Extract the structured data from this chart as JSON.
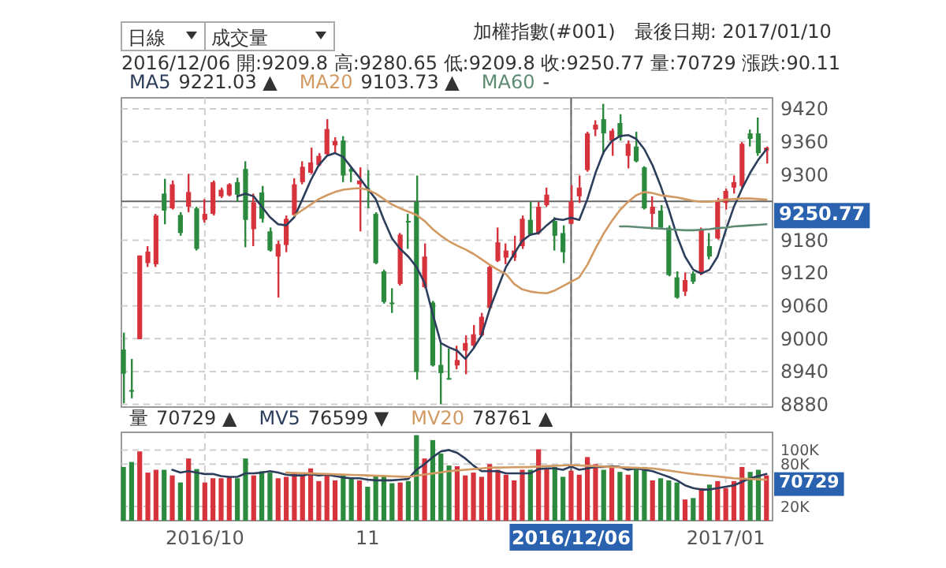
{
  "chart_data": [
    {
      "type": "candlestick",
      "title": "加權指數(#001)",
      "subtitle": "最後日期: 2017/01/10",
      "annotations": [
        "日線",
        "成交量",
        "2016/12/06 開:9209.8 高:9280.65 低:9209.8 收:9250.77 量:70729 漲跌:90.11",
        "9221.03 ▲",
        "9103.73 ▲",
        "-"
      ],
      "categories": [
        null,
        null,
        null,
        null,
        null,
        null,
        null,
        null,
        null,
        null,
        "2016/10",
        null,
        null,
        null,
        null,
        null,
        null,
        null,
        null,
        null,
        null,
        null,
        null,
        null,
        null,
        null,
        null,
        null,
        null,
        null,
        "11",
        null,
        null,
        null,
        null,
        null,
        null,
        null,
        null,
        null,
        null,
        null,
        null,
        null,
        null,
        null,
        null,
        null,
        null,
        null,
        null,
        null,
        null,
        null,
        null,
        "2016/12/06",
        null,
        null,
        null,
        null,
        null,
        null,
        null,
        null,
        null,
        null,
        null,
        null,
        null,
        null,
        null,
        null,
        null,
        null,
        "2017/01",
        null,
        null,
        null,
        null,
        null
      ],
      "ohlc": [
        [
          8980,
          9011,
          8882,
          8936
        ],
        [
          8906,
          8963,
          8891,
          8903
        ],
        [
          8999,
          9152,
          8999,
          9152
        ],
        [
          9138,
          9169,
          9131,
          9159
        ],
        [
          9136,
          9228,
          9131,
          9225
        ],
        [
          9265,
          9292,
          9209,
          9234
        ],
        [
          9238,
          9289,
          9236,
          9282
        ],
        [
          9226,
          9231,
          9188,
          9193
        ],
        [
          9241,
          9301,
          9231,
          9268
        ],
        [
          9238,
          9241,
          9161,
          9164
        ],
        [
          9217,
          9255,
          9212,
          9228
        ],
        [
          9228,
          9289,
          9225,
          9286
        ],
        [
          9260,
          9276,
          9257,
          9272
        ],
        [
          9262,
          9284,
          9260,
          9282
        ],
        [
          9286,
          9294,
          9250,
          9263
        ],
        [
          9310,
          9324,
          9167,
          9217
        ],
        [
          9200,
          9265,
          9169,
          9249
        ],
        [
          9267,
          9279,
          9212,
          9219
        ],
        [
          9196,
          9203,
          9159,
          9161
        ],
        [
          9150,
          9179,
          9075,
          9173
        ],
        [
          9171,
          9225,
          9158,
          9219
        ],
        [
          9226,
          9293,
          9225,
          9282
        ],
        [
          9286,
          9324,
          9282,
          9314
        ],
        [
          9303,
          9349,
          9301,
          9322
        ],
        [
          9317,
          9339,
          9315,
          9334
        ],
        [
          9337,
          9401,
          9334,
          9383
        ],
        [
          9353,
          9368,
          9339,
          9361
        ],
        [
          9362,
          9370,
          9286,
          9298
        ],
        [
          9310,
          9313,
          9286,
          9305
        ],
        [
          9282,
          9313,
          9196,
          9289
        ],
        [
          9275,
          9308,
          9238,
          9273
        ],
        [
          9228,
          9231,
          9136,
          9138
        ],
        [
          9123,
          9126,
          9064,
          9067
        ],
        [
          9066,
          9092,
          9047,
          9064
        ],
        [
          9100,
          9193,
          9097,
          9190
        ],
        [
          9215,
          9228,
          9164,
          9213
        ],
        [
          9250,
          9298,
          8925,
          8939
        ],
        [
          9094,
          9174,
          9092,
          9150
        ],
        [
          9066,
          9069,
          8949,
          8951
        ],
        [
          8952,
          8992,
          8880,
          8937
        ],
        [
          8928,
          8982,
          8925,
          8926
        ],
        [
          8951,
          8987,
          8944,
          8961
        ],
        [
          8978,
          9006,
          8935,
          8992
        ],
        [
          8987,
          9025,
          8982,
          9008
        ],
        [
          9006,
          9047,
          9004,
          9040
        ],
        [
          9056,
          9133,
          9052,
          9131
        ],
        [
          9142,
          9203,
          9140,
          9176
        ],
        [
          9148,
          9174,
          9136,
          9161
        ],
        [
          9148,
          9188,
          9142,
          9161
        ],
        [
          9169,
          9225,
          9164,
          9219
        ],
        [
          9217,
          9250,
          9188,
          9190
        ],
        [
          9193,
          9250,
          9190,
          9241
        ],
        [
          9244,
          9276,
          9241,
          9263
        ],
        [
          9215,
          9222,
          9161,
          9188
        ],
        [
          9193,
          9207,
          9138,
          9158
        ],
        [
          9209.8,
          9280.65,
          9209.8,
          9250.77
        ],
        [
          9260,
          9298,
          9248,
          9276
        ],
        [
          9308,
          9378,
          9305,
          9375
        ],
        [
          9382,
          9399,
          9370,
          9391
        ],
        [
          9401,
          9429,
          9337,
          9375
        ],
        [
          9362,
          9384,
          9334,
          9380
        ],
        [
          9394,
          9410,
          9362,
          9368
        ],
        [
          9334,
          9362,
          9311,
          9356
        ],
        [
          9351,
          9378,
          9322,
          9324
        ],
        [
          9313,
          9315,
          9236,
          9238
        ],
        [
          9228,
          9260,
          9200,
          9241
        ],
        [
          9234,
          9244,
          9200,
          9203
        ],
        [
          9203,
          9207,
          9114,
          9116
        ],
        [
          9112,
          9123,
          9073,
          9075
        ],
        [
          9086,
          9121,
          9078,
          9107
        ],
        [
          9119,
          9123,
          9100,
          9104
        ],
        [
          9119,
          9203,
          9116,
          9200
        ],
        [
          9169,
          9193,
          9145,
          9150
        ],
        [
          9183,
          9257,
          9181,
          9250
        ],
        [
          9248,
          9274,
          9236,
          9270
        ],
        [
          9276,
          9298,
          9265,
          9286
        ],
        [
          9279,
          9359,
          9276,
          9356
        ],
        [
          9375,
          9382,
          9351,
          9365
        ],
        [
          9375,
          9404,
          9334,
          9339
        ],
        [
          9344,
          9351,
          9320,
          9349
        ]
      ],
      "colors": [
        "#2b8a3e",
        "#2b8a3e",
        "#d7333c",
        "#d7333c",
        "#d7333c",
        "#2b8a3e",
        "#d7333c",
        "#2b8a3e",
        "#d7333c",
        "#2b8a3e",
        "#d7333c",
        "#d7333c",
        "#d7333c",
        "#d7333c",
        "#2b8a3e",
        "#2b8a3e",
        "#d7333c",
        "#2b8a3e",
        "#2b8a3e",
        "#d7333c",
        "#d7333c",
        "#d7333c",
        "#d7333c",
        "#d7333c",
        "#d7333c",
        "#d7333c",
        "#d7333c",
        "#2b8a3e",
        "#2b8a3e",
        "#d7333c",
        "#2b8a3e",
        "#2b8a3e",
        "#2b8a3e",
        "#2b8a3e",
        "#d7333c",
        "#2b8a3e",
        "#2b8a3e",
        "#d7333c",
        "#2b8a3e",
        "#2b8a3e",
        "#2b8a3e",
        "#d7333c",
        "#d7333c",
        "#d7333c",
        "#d7333c",
        "#d7333c",
        "#d7333c",
        "#d7333c",
        "#d7333c",
        "#d7333c",
        "#2b8a3e",
        "#d7333c",
        "#d7333c",
        "#2b8a3e",
        "#2b8a3e",
        "#d7333c",
        "#d7333c",
        "#d7333c",
        "#d7333c",
        "#2b8a3e",
        "#d7333c",
        "#2b8a3e",
        "#d7333c",
        "#2b8a3e",
        "#2b8a3e",
        "#d7333c",
        "#2b8a3e",
        "#2b8a3e",
        "#2b8a3e",
        "#d7333c",
        "#2b8a3e",
        "#d7333c",
        "#2b8a3e",
        "#d7333c",
        "#d7333c",
        "#d7333c",
        "#d7333c",
        "#2b8a3e",
        "#2b8a3e",
        "#d7333c"
      ],
      "series": [
        {
          "name": "MA5",
          "type": "line",
          "color": "#2c3e5c",
          "values": [
            null,
            null,
            null,
            null,
            null,
            null,
            null,
            null,
            null,
            null,
            null,
            null,
            null,
            null,
            9260,
            9265,
            9260,
            9241,
            9222,
            9209,
            9207,
            9222,
            9255,
            9289,
            9317,
            9334,
            9339,
            9332,
            9313,
            9294,
            9274,
            9255,
            9217,
            9183,
            9164,
            9150,
            9131,
            9102,
            9045,
            8992,
            8984,
            8978,
            8963,
            8982,
            9006,
            9054,
            9093,
            9131,
            9155,
            9179,
            9190,
            9193,
            9207,
            9219,
            9217,
            9221,
            9217,
            9255,
            9303,
            9341,
            9361,
            9370,
            9372,
            9365,
            9346,
            9317,
            9279,
            9236,
            9188,
            9150,
            9126,
            9119,
            9126,
            9150,
            9198,
            9241,
            9274,
            9303,
            9327,
            9346
          ]
        },
        {
          "name": "MA20",
          "type": "line",
          "color": "#d29a62",
          "values": [
            null,
            null,
            null,
            null,
            null,
            null,
            null,
            null,
            null,
            null,
            null,
            null,
            null,
            null,
            null,
            null,
            null,
            null,
            null,
            null,
            null,
            9225,
            9235,
            9245,
            9255,
            9262,
            9268,
            9272,
            9274,
            9275,
            9272,
            9265,
            9255,
            9245,
            9238,
            9232,
            9226,
            9215,
            9200,
            9188,
            9178,
            9170,
            9163,
            9155,
            9145,
            9135,
            9126,
            9118,
            9100,
            9090,
            9086,
            9084,
            9083,
            9088,
            9096,
            9104,
            9112,
            9135,
            9165,
            9192,
            9215,
            9235,
            9250,
            9262,
            9268,
            9266,
            9262,
            9260,
            9258,
            9255,
            9252,
            9250,
            9250,
            9252,
            9254,
            9255,
            9256,
            9256,
            9255,
            9254
          ]
        },
        {
          "name": "MA60",
          "type": "line",
          "color": "#5e8b73",
          "values": [
            null,
            null,
            null,
            null,
            null,
            null,
            null,
            null,
            null,
            null,
            null,
            null,
            null,
            null,
            null,
            null,
            null,
            null,
            null,
            null,
            null,
            null,
            null,
            null,
            null,
            null,
            null,
            null,
            null,
            null,
            null,
            null,
            null,
            null,
            null,
            null,
            null,
            null,
            null,
            null,
            null,
            null,
            null,
            null,
            null,
            null,
            null,
            null,
            null,
            null,
            null,
            null,
            null,
            null,
            null,
            null,
            null,
            null,
            null,
            null,
            null,
            9205,
            9205,
            9204,
            9203,
            9202,
            9201,
            9200,
            9199,
            9198,
            9198,
            9199,
            9200,
            9202,
            9203,
            9205,
            9206,
            9207,
            9208,
            9209
          ]
        }
      ],
      "ylim": [
        8875,
        9440
      ],
      "yticks": [
        8880,
        8940,
        9000,
        9060,
        9120,
        9180,
        {
          "value": 9240,
          "label": null
        },
        9300,
        9360,
        9420
      ],
      "grid": true,
      "legend": "top",
      "tick_labels": "y",
      "ref_lines": [
        {
          "axis": "x",
          "value": "2016/12/06",
          "color": "#666666"
        },
        {
          "axis": "y",
          "value": 9250.77,
          "label": "9250.77",
          "color": "#666666"
        }
      ]
    },
    {
      "type": "bar",
      "categories": [
        null,
        null,
        null,
        null,
        null,
        null,
        null,
        null,
        null,
        null,
        "2016/10",
        null,
        null,
        null,
        null,
        null,
        null,
        null,
        null,
        null,
        null,
        null,
        null,
        null,
        null,
        null,
        null,
        null,
        null,
        null,
        "11",
        null,
        null,
        null,
        null,
        null,
        null,
        null,
        null,
        null,
        null,
        null,
        null,
        null,
        null,
        null,
        null,
        null,
        null,
        null,
        null,
        null,
        null,
        null,
        null,
        "2016/12/06",
        null,
        null,
        null,
        null,
        null,
        null,
        null,
        null,
        null,
        null,
        null,
        null,
        null,
        null,
        null,
        null,
        null,
        null,
        "2017/01",
        null,
        null,
        null,
        null,
        null
      ],
      "series": [
        {
          "name": "量",
          "type": "bar",
          "values": [
            76,
            83,
            98,
            68,
            72,
            72,
            64,
            54,
            88,
            73,
            54,
            60,
            60,
            62,
            60,
            88,
            64,
            70,
            68,
            60,
            62,
            68,
            64,
            74,
            56,
            64,
            57,
            65,
            60,
            57,
            48,
            64,
            64,
            53,
            54,
            56,
            121,
            88,
            114,
            95,
            78,
            77,
            64,
            68,
            62,
            80,
            72,
            65,
            57,
            72,
            72,
            101,
            73,
            76,
            62,
            70.729,
            65,
            90,
            80,
            72,
            76,
            69,
            65,
            76,
            76,
            57,
            60,
            57,
            54,
            30,
            32,
            46,
            51,
            56,
            46,
            56,
            76,
            69,
            72,
            64
          ],
          "colors": [
            "#2b8a3e",
            "#2b8a3e",
            "#d7333c",
            "#d7333c",
            "#d7333c",
            "#2b8a3e",
            "#d7333c",
            "#2b8a3e",
            "#d7333c",
            "#2b8a3e",
            "#d7333c",
            "#d7333c",
            "#d7333c",
            "#d7333c",
            "#2b8a3e",
            "#2b8a3e",
            "#d7333c",
            "#2b8a3e",
            "#2b8a3e",
            "#d7333c",
            "#d7333c",
            "#d7333c",
            "#d7333c",
            "#d7333c",
            "#d7333c",
            "#d7333c",
            "#d7333c",
            "#2b8a3e",
            "#2b8a3e",
            "#d7333c",
            "#2b8a3e",
            "#2b8a3e",
            "#2b8a3e",
            "#2b8a3e",
            "#d7333c",
            "#2b8a3e",
            "#2b8a3e",
            "#d7333c",
            "#2b8a3e",
            "#2b8a3e",
            "#2b8a3e",
            "#d7333c",
            "#d7333c",
            "#d7333c",
            "#d7333c",
            "#d7333c",
            "#d7333c",
            "#d7333c",
            "#d7333c",
            "#d7333c",
            "#2b8a3e",
            "#d7333c",
            "#d7333c",
            "#2b8a3e",
            "#2b8a3e",
            "#d7333c",
            "#d7333c",
            "#d7333c",
            "#d7333c",
            "#2b8a3e",
            "#d7333c",
            "#2b8a3e",
            "#d7333c",
            "#2b8a3e",
            "#2b8a3e",
            "#d7333c",
            "#2b8a3e",
            "#2b8a3e",
            "#2b8a3e",
            "#d7333c",
            "#2b8a3e",
            "#d7333c",
            "#2b8a3e",
            "#d7333c",
            "#d7333c",
            "#d7333c",
            "#d7333c",
            "#2b8a3e",
            "#2b8a3e",
            "#d7333c"
          ]
        },
        {
          "name": "MV5",
          "type": "line",
          "color": "#2c3e5c",
          "values": [
            null,
            null,
            null,
            null,
            null,
            null,
            72,
            68,
            70,
            68,
            66,
            66,
            63,
            62,
            62,
            67,
            67,
            68,
            70,
            68,
            65,
            64,
            64,
            66,
            64,
            65,
            63,
            61,
            60,
            60,
            58,
            57,
            57,
            57,
            58,
            59,
            72,
            80,
            90,
            98,
            100,
            96,
            88,
            78,
            70,
            70,
            70,
            67,
            67,
            67,
            67,
            73,
            74,
            74,
            72,
            76.599,
            72,
            74,
            76,
            76,
            77,
            76,
            72,
            74,
            72,
            70,
            66,
            62,
            57,
            50,
            46,
            44,
            44,
            46,
            48,
            50,
            55,
            60,
            63,
            66
          ]
        },
        {
          "name": "MV20",
          "type": "line",
          "color": "#d29a62",
          "values": [
            null,
            null,
            null,
            null,
            null,
            null,
            null,
            null,
            null,
            null,
            null,
            null,
            null,
            null,
            null,
            null,
            null,
            null,
            null,
            null,
            68,
            67.6,
            67.2,
            66.8,
            66.4,
            66,
            65.6,
            65.2,
            64.8,
            64.4,
            64,
            63.6,
            63.2,
            62.8,
            62.4,
            62,
            63.6,
            65.2,
            66.8,
            68.4,
            70,
            71,
            72,
            73,
            74,
            75,
            75.2,
            75.4,
            75.6,
            75.8,
            76,
            76.6,
            77.1,
            77.7,
            78.2,
            78.761,
            78.2,
            77.7,
            77.1,
            76.6,
            76,
            75.6,
            75.2,
            74.8,
            74.4,
            74,
            72.4,
            70.8,
            69.2,
            67.6,
            66,
            64.8,
            63.6,
            62.4,
            61.2,
            60,
            59.5,
            59,
            58.5,
            58
          ]
        }
      ],
      "annotations": [
        "70729",
        "70729 ▲",
        "76599 ▼",
        "78761 ▲"
      ],
      "ylim": [
        0,
        125
      ],
      "yticks": [
        {
          "value": 20,
          "label": "20K"
        },
        {
          "value": 80,
          "label": "80K"
        },
        {
          "value": 100,
          "label": "100K"
        }
      ],
      "grid": true,
      "legend": "top",
      "ref_lines": [
        {
          "axis": "x",
          "value": "2016/12/06",
          "color": "#666666"
        }
      ]
    }
  ]
}
